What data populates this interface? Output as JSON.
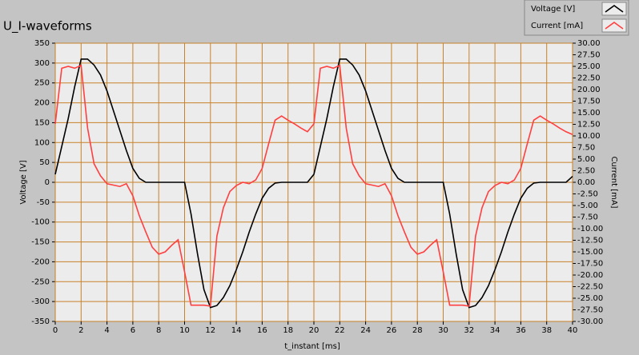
{
  "chart_data": {
    "type": "line",
    "title": "U_I-waveforms",
    "x_label": "t_instant [ms]",
    "y_label": "Voltage [V]",
    "y2_label": "Current [mA]",
    "x": [
      0,
      0.5,
      1,
      1.5,
      2,
      2.5,
      3,
      3.5,
      4,
      4.5,
      5,
      5.5,
      6,
      6.5,
      7,
      7.5,
      8,
      8.5,
      9,
      9.5,
      10,
      10.5,
      11,
      11.5,
      12,
      12.5,
      13,
      13.5,
      14,
      14.5,
      15,
      15.5,
      16,
      16.5,
      17,
      17.5,
      18,
      18.5,
      19,
      19.5,
      20,
      20.5,
      21,
      21.5,
      22,
      22.5,
      23,
      23.5,
      24,
      24.5,
      25,
      25.5,
      26,
      26.5,
      27,
      27.5,
      28,
      28.5,
      29,
      29.5,
      30,
      30.5,
      31,
      31.5,
      32,
      32.5,
      33,
      33.5,
      34,
      34.5,
      35,
      35.5,
      36,
      36.5,
      37,
      37.5,
      38,
      38.5,
      39,
      39.5,
      40
    ],
    "series": [
      {
        "name": "Voltage [V]",
        "color": "#000000",
        "values": [
          20,
          90,
          160,
          240,
          310,
          310,
          295,
          270,
          230,
          180,
          130,
          80,
          35,
          10,
          0,
          0,
          0,
          0,
          0,
          0,
          0,
          -80,
          -180,
          -270,
          -315,
          -310,
          -290,
          -260,
          -220,
          -175,
          -125,
          -80,
          -40,
          -15,
          -2,
          0,
          0,
          0,
          0,
          0,
          20,
          90,
          160,
          240,
          310,
          310,
          295,
          270,
          230,
          180,
          130,
          80,
          35,
          10,
          0,
          0,
          0,
          0,
          0,
          0,
          0,
          -80,
          -180,
          -270,
          -315,
          -310,
          -290,
          -260,
          -220,
          -175,
          -125,
          -80,
          -40,
          -15,
          -2,
          0,
          0,
          0,
          0,
          0,
          15
        ]
      },
      {
        "name": "Current [mA]",
        "color": "#ff4040",
        "axis": "y2",
        "values": [
          12.6,
          24.6,
          25,
          24.6,
          25.2,
          11.7,
          4,
          1.4,
          -0.3,
          -0.6,
          -0.9,
          -0.3,
          -2.9,
          -7.2,
          -10.7,
          -14,
          -15.5,
          -15,
          -13.6,
          -12.4,
          -19.3,
          -26.5,
          -26.5,
          -26.5,
          -26.7,
          -11.6,
          -5.5,
          -2,
          -0.7,
          0,
          -0.3,
          0.5,
          3,
          8.3,
          13.4,
          14.3,
          13.4,
          12.6,
          11.7,
          10.9,
          12.6,
          24.6,
          25,
          24.6,
          25.2,
          11.7,
          4,
          1.4,
          -0.3,
          -0.6,
          -0.9,
          -0.3,
          -2.9,
          -7.2,
          -10.7,
          -14,
          -15.5,
          -15,
          -13.6,
          -12.4,
          -19.3,
          -26.5,
          -26.5,
          -26.5,
          -26.7,
          -11.6,
          -5.5,
          -2,
          -0.7,
          0,
          -0.3,
          0.5,
          3,
          8.3,
          13.4,
          14.3,
          13.4,
          12.6,
          11.7,
          10.9,
          10.3
        ]
      }
    ],
    "xlim": [
      0,
      40
    ],
    "xticks": [
      0,
      2,
      4,
      6,
      8,
      10,
      12,
      14,
      16,
      18,
      20,
      22,
      24,
      26,
      28,
      30,
      32,
      34,
      36,
      38,
      40
    ],
    "ylim": [
      -350,
      350
    ],
    "yticks": [
      -350,
      -300,
      -250,
      -200,
      -150,
      -100,
      -50,
      0,
      50,
      100,
      150,
      200,
      250,
      300,
      350
    ],
    "y2lim": [
      -30,
      30
    ],
    "y2ticks": [
      {
        "value": -30,
        "label": "-30.00"
      },
      {
        "value": -27.5,
        "label": "-27.50"
      },
      {
        "value": -25,
        "label": "-25.00"
      },
      {
        "value": -22.5,
        "label": "-22.50"
      },
      {
        "value": -20,
        "label": "-20.00"
      },
      {
        "value": -17.5,
        "label": "-17.50"
      },
      {
        "value": -15,
        "label": "-15.00"
      },
      {
        "value": -12.5,
        "label": "-12.50"
      },
      {
        "value": -10,
        "label": "-10.00"
      },
      {
        "value": -7.5,
        "label": "-7.50"
      },
      {
        "value": -5,
        "label": "-5.00"
      },
      {
        "value": -2.5,
        "label": "-2.50"
      },
      {
        "value": 0,
        "label": "0.00"
      },
      {
        "value": 2.5,
        "label": "2.50"
      },
      {
        "value": 5,
        "label": "5.00"
      },
      {
        "value": 7.5,
        "label": "7.50"
      },
      {
        "value": 10,
        "label": "10.00"
      },
      {
        "value": 12.5,
        "label": "12.50"
      },
      {
        "value": 15,
        "label": "15.00"
      },
      {
        "value": 17.5,
        "label": "17.50"
      },
      {
        "value": 20,
        "label": "20.00"
      },
      {
        "value": 22.5,
        "label": "22.50"
      },
      {
        "value": 25,
        "label": "25.00"
      },
      {
        "value": 27.5,
        "label": "27.50"
      },
      {
        "value": 30,
        "label": "30.00"
      }
    ],
    "grid": true,
    "grid_color": "#c8822a",
    "legend": "top-right"
  }
}
